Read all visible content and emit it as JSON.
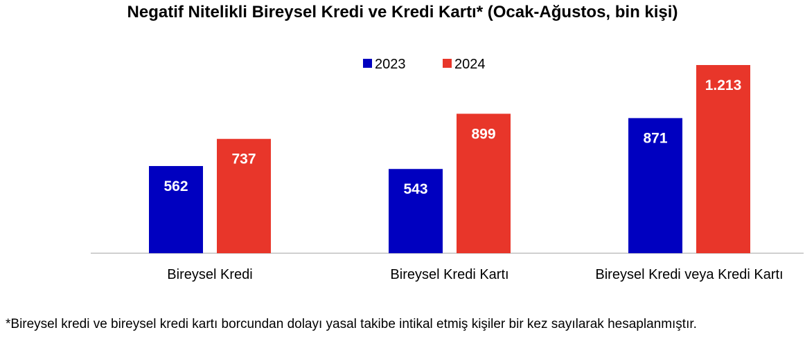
{
  "chart_data": {
    "type": "bar",
    "title": "Negatif Nitelikli Bireysel Kredi ve Kredi Kartı*  (Ocak-Ağustos, bin kişi)",
    "categories": [
      "Bireysel Kredi",
      "Bireysel Kredi Kartı",
      "Bireysel Kredi veya Kredi Kartı"
    ],
    "series": [
      {
        "name": "2023",
        "values": [
          562,
          543,
          871
        ],
        "labels": [
          "562",
          "543",
          "871"
        ]
      },
      {
        "name": "2024",
        "values": [
          737,
          899,
          1213
        ],
        "labels": [
          "737",
          "899",
          "1.213"
        ]
      }
    ],
    "colors": {
      "2023": "#0000c0",
      "2024": "#e8362a"
    },
    "legend_position": "top",
    "grid": false,
    "ylim": [
      0,
      1300
    ]
  },
  "footnote": "*Bireysel kredi ve bireysel kredi kartı borcundan dolayı yasal takibe intikal etmiş kişiler bir kez sayılarak hesaplanmıştır."
}
